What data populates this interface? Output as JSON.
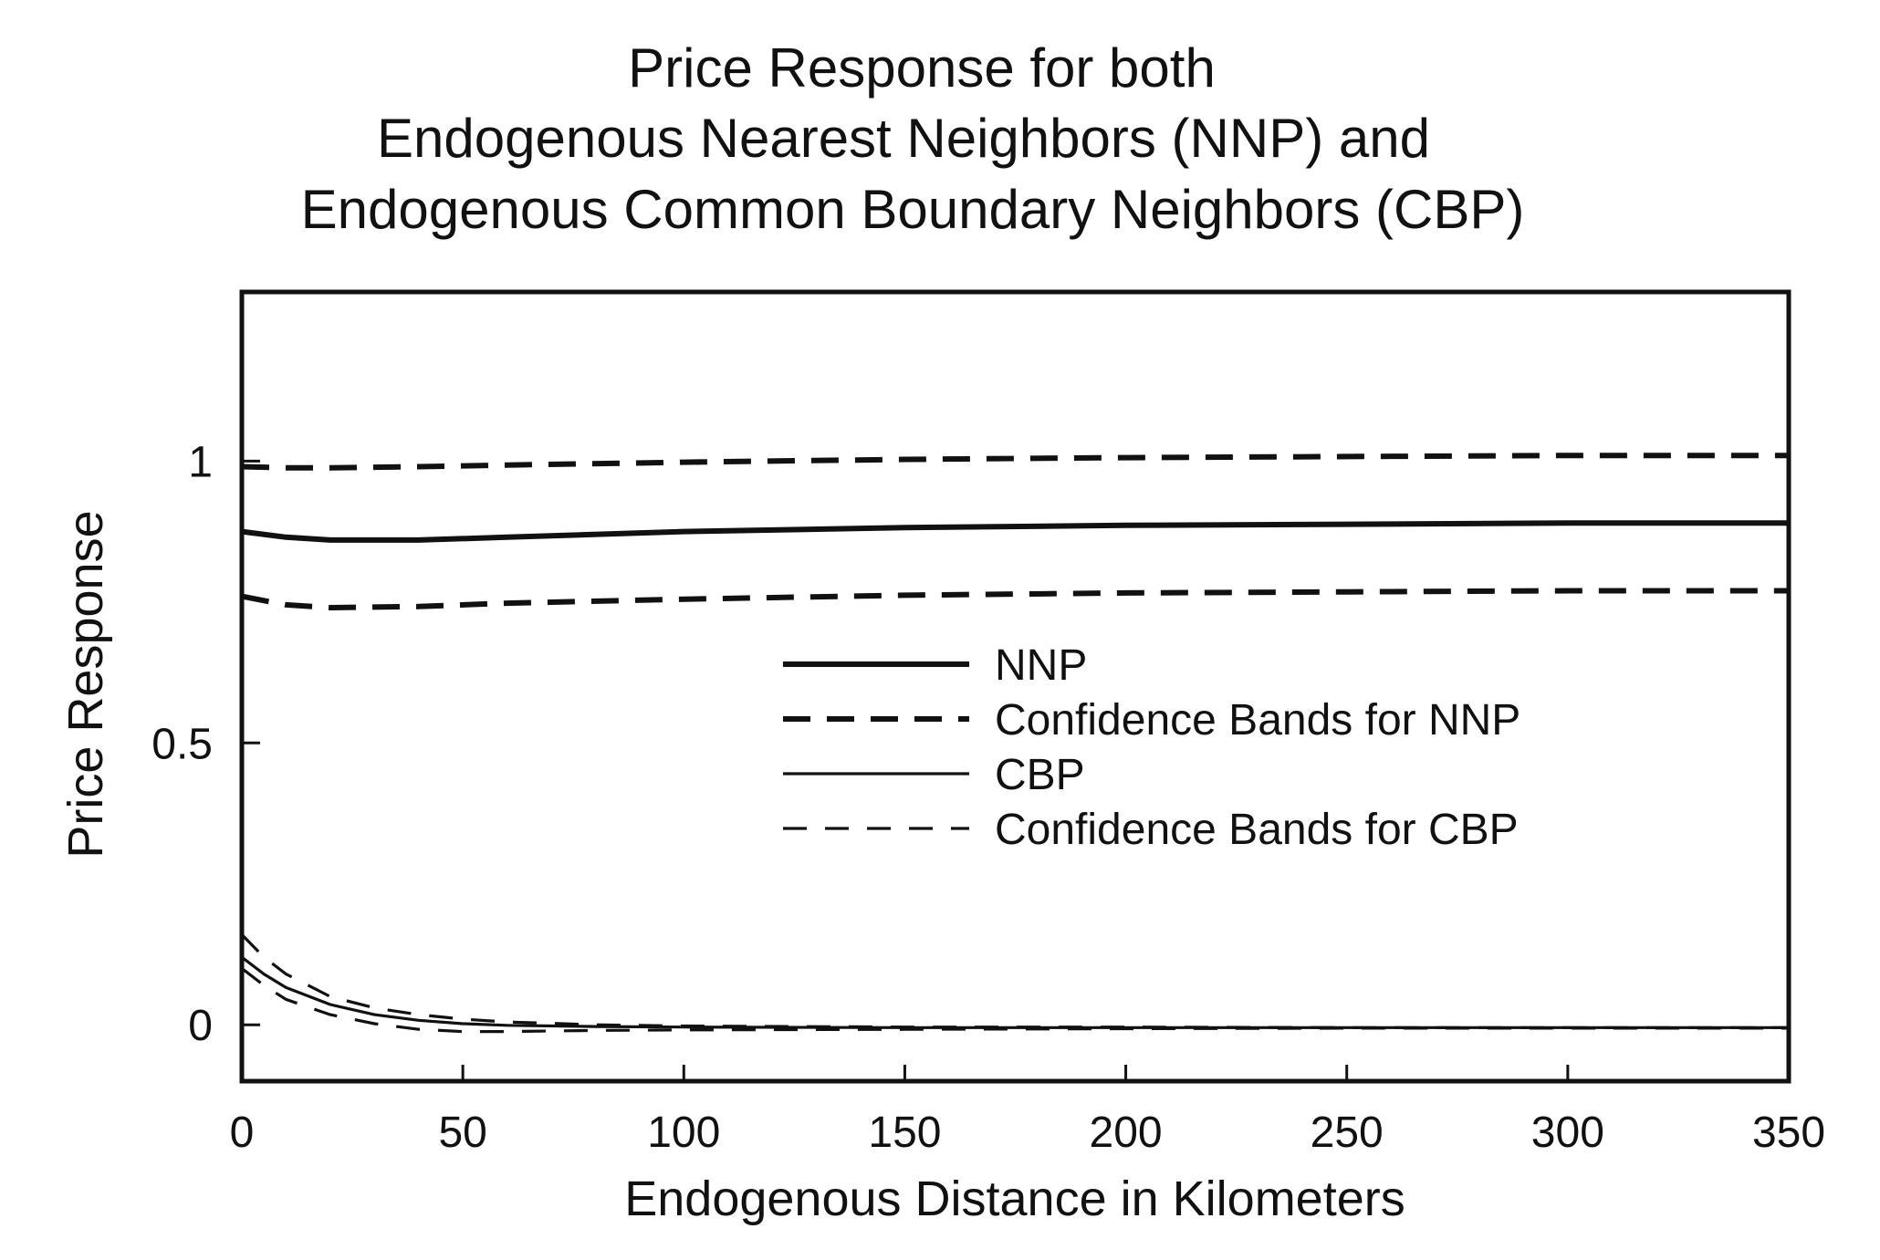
{
  "chart_data": {
    "type": "line",
    "title": [
      "Price Response for both",
      "Endogenous Nearest Neighbors (NNP) and",
      "Endogenous Common Boundary Neighbors (CBP)"
    ],
    "xlabel": "Endogenous Distance in Kilometers",
    "ylabel": "Price Response",
    "xlim": [
      0,
      350
    ],
    "ylim": [
      -0.1,
      1.3
    ],
    "x_ticks": [
      0,
      50,
      100,
      150,
      200,
      250,
      300,
      350
    ],
    "x_tick_labels": [
      "0",
      "50",
      "100",
      "150",
      "200",
      "250",
      "300",
      "350"
    ],
    "y_ticks": [
      0,
      0.5,
      1
    ],
    "y_tick_labels": [
      "0",
      "0.5",
      "1"
    ],
    "grid": false,
    "legend": "center-right",
    "series": [
      {
        "name": "NNP",
        "style": "solid-thick",
        "x": [
          0,
          10,
          20,
          40,
          60,
          100,
          150,
          200,
          250,
          300,
          350
        ],
        "y": [
          0.875,
          0.865,
          0.86,
          0.86,
          0.865,
          0.875,
          0.882,
          0.886,
          0.888,
          0.89,
          0.89
        ]
      },
      {
        "name": "Confidence Bands for NNP",
        "style": "dashed-thick",
        "x": [
          0,
          10,
          20,
          40,
          60,
          100,
          150,
          200,
          250,
          300,
          350
        ],
        "y": [
          0.99,
          0.988,
          0.988,
          0.99,
          0.993,
          0.998,
          1.003,
          1.006,
          1.008,
          1.01,
          1.01
        ]
      },
      {
        "name": "",
        "style": "dashed-thick",
        "x": [
          0,
          10,
          20,
          40,
          60,
          100,
          150,
          200,
          250,
          300,
          350
        ],
        "y": [
          0.76,
          0.745,
          0.74,
          0.742,
          0.748,
          0.755,
          0.762,
          0.766,
          0.768,
          0.77,
          0.77
        ]
      },
      {
        "name": "CBP",
        "style": "solid-thin",
        "x": [
          0,
          5,
          10,
          20,
          30,
          40,
          50,
          60,
          80,
          100,
          150,
          200,
          250,
          300,
          350
        ],
        "y": [
          0.12,
          0.09,
          0.066,
          0.036,
          0.018,
          0.008,
          0.002,
          -0.001,
          -0.003,
          -0.004,
          -0.005,
          -0.005,
          -0.005,
          -0.005,
          -0.005
        ]
      },
      {
        "name": "Confidence Bands for CBP",
        "style": "dashed-thin",
        "x": [
          0,
          5,
          10,
          20,
          30,
          40,
          50,
          60,
          80,
          100,
          150,
          200,
          250,
          300,
          350
        ],
        "y": [
          0.16,
          0.12,
          0.09,
          0.05,
          0.03,
          0.018,
          0.01,
          0.005,
          0.0,
          -0.002,
          -0.004,
          -0.004,
          -0.005,
          -0.005,
          -0.005
        ]
      },
      {
        "name": "",
        "style": "dashed-thin",
        "x": [
          0,
          5,
          10,
          20,
          30,
          40,
          50,
          60,
          80,
          100,
          150,
          200,
          250,
          300,
          350
        ],
        "y": [
          0.1,
          0.07,
          0.045,
          0.018,
          0.002,
          -0.008,
          -0.012,
          -0.012,
          -0.01,
          -0.009,
          -0.008,
          -0.007,
          -0.006,
          -0.006,
          -0.006
        ]
      }
    ],
    "colors": {
      "ink": "#111111",
      "background": "#ffffff"
    }
  }
}
